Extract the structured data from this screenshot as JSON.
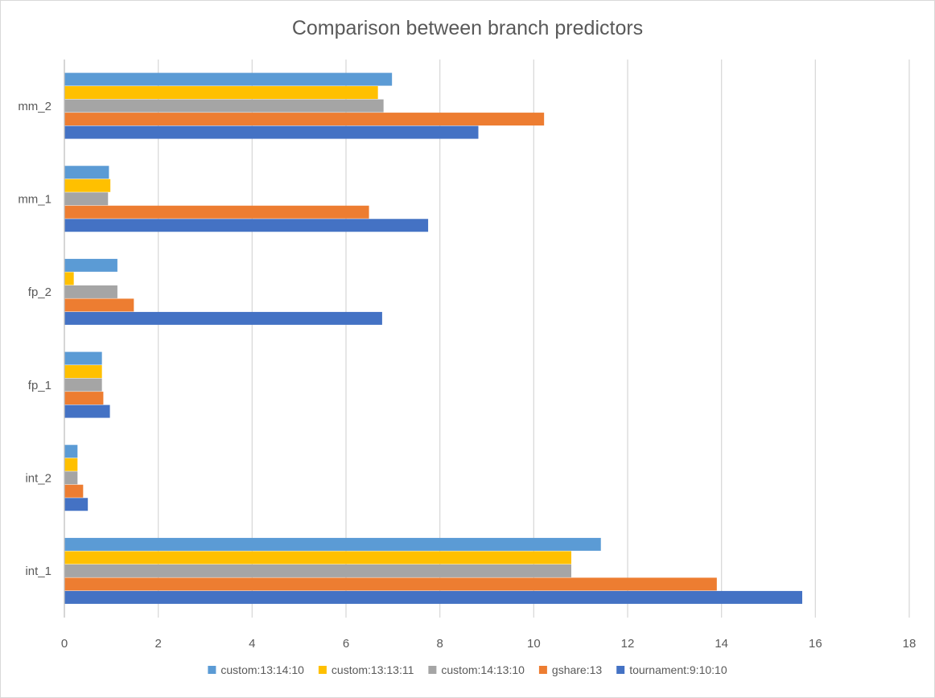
{
  "chart_data": {
    "type": "bar",
    "orientation": "horizontal",
    "title": "Comparison between branch predictors",
    "xlabel": "",
    "ylabel": "",
    "xlim": [
      0,
      18
    ],
    "x_ticks": [
      0,
      2,
      4,
      6,
      8,
      10,
      12,
      14,
      16,
      18
    ],
    "grid": true,
    "legend_position": "bottom",
    "categories": [
      "int_1",
      "int_2",
      "fp_1",
      "fp_2",
      "mm_1",
      "mm_2"
    ],
    "series": [
      {
        "name": "custom:13:14:10",
        "color": "#5B9BD5",
        "values": [
          11.43,
          0.28,
          0.8,
          1.13,
          0.95,
          6.98
        ]
      },
      {
        "name": "custom:13:13:11",
        "color": "#FFC000",
        "values": [
          10.8,
          0.28,
          0.8,
          0.2,
          0.98,
          6.68
        ]
      },
      {
        "name": "custom:14:13:10",
        "color": "#A5A5A5",
        "values": [
          10.8,
          0.28,
          0.8,
          1.13,
          0.93,
          6.8
        ]
      },
      {
        "name": "gshare:13",
        "color": "#ED7D31",
        "values": [
          13.9,
          0.4,
          0.83,
          1.48,
          6.49,
          10.22
        ]
      },
      {
        "name": "tournament:9:10:10",
        "color": "#4472C4",
        "values": [
          15.72,
          0.5,
          0.97,
          6.77,
          7.75,
          8.82
        ]
      }
    ]
  }
}
